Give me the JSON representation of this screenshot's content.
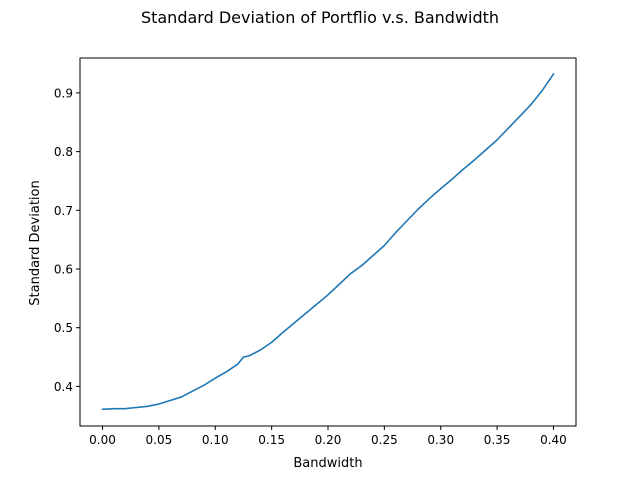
{
  "chart_data": {
    "type": "line",
    "title": "Standard Deviation of Portflio v.s. Bandwidth",
    "xlabel": "Bandwidth",
    "ylabel": "Standard Deviation",
    "xlim": [
      -0.02,
      0.42
    ],
    "ylim": [
      0.3325,
      0.9595
    ],
    "xticks": [
      0.0,
      0.05,
      0.1,
      0.15,
      0.2,
      0.25,
      0.3,
      0.35,
      0.4
    ],
    "xtick_labels": [
      "0.00",
      "0.05",
      "0.10",
      "0.15",
      "0.20",
      "0.25",
      "0.30",
      "0.35",
      "0.40"
    ],
    "yticks": [
      0.4,
      0.5,
      0.6,
      0.7,
      0.8,
      0.9
    ],
    "ytick_labels": [
      "0.4",
      "0.5",
      "0.6",
      "0.7",
      "0.8",
      "0.9"
    ],
    "grid": false,
    "series": [
      {
        "color": "#1f77b4",
        "x": [
          0.0,
          0.01,
          0.02,
          0.03,
          0.04,
          0.05,
          0.06,
          0.07,
          0.08,
          0.09,
          0.1,
          0.11,
          0.12,
          0.125,
          0.13,
          0.14,
          0.15,
          0.16,
          0.17,
          0.18,
          0.19,
          0.2,
          0.21,
          0.22,
          0.23,
          0.24,
          0.25,
          0.26,
          0.27,
          0.28,
          0.29,
          0.3,
          0.31,
          0.32,
          0.33,
          0.34,
          0.35,
          0.36,
          0.37,
          0.38,
          0.39,
          0.4
        ],
        "y": [
          0.361,
          0.362,
          0.362,
          0.364,
          0.366,
          0.37,
          0.376,
          0.382,
          0.392,
          0.402,
          0.414,
          0.425,
          0.438,
          0.45,
          0.452,
          0.462,
          0.475,
          0.492,
          0.508,
          0.524,
          0.54,
          0.556,
          0.574,
          0.592,
          0.606,
          0.623,
          0.64,
          0.662,
          0.682,
          0.702,
          0.72,
          0.737,
          0.753,
          0.77,
          0.786,
          0.803,
          0.82,
          0.84,
          0.86,
          0.88,
          0.904,
          0.932
        ]
      }
    ]
  }
}
